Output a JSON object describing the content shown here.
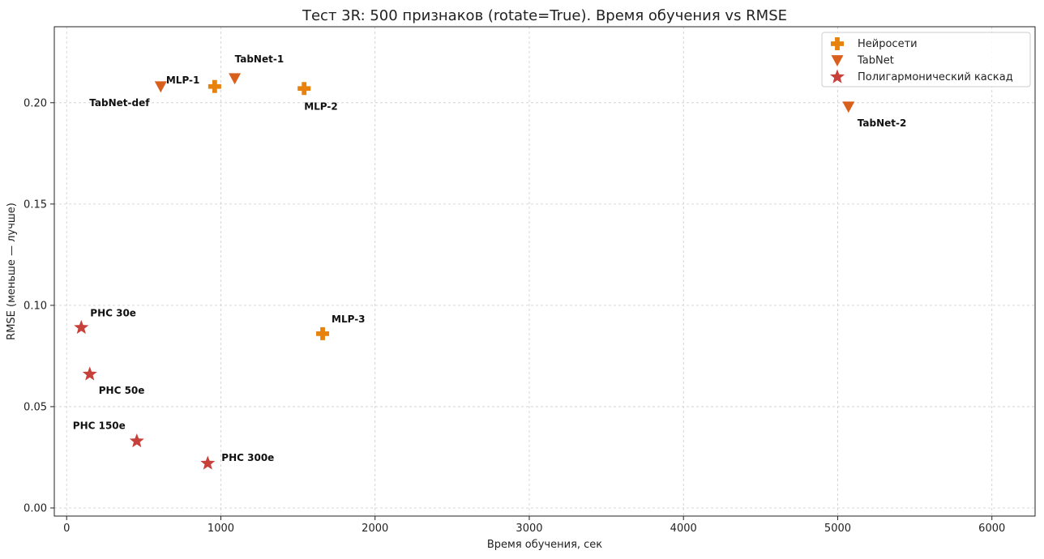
{
  "chart_data": {
    "type": "scatter",
    "title": "Тест 3R: 500 признаков (rotate=True). Время обучения vs RMSE",
    "xlabel": "Время обучения, сек",
    "ylabel": "RMSE (меньше — лучше)",
    "xlim": [
      -80,
      6280
    ],
    "ylim": [
      -0.004,
      0.2375
    ],
    "xticks": [
      0,
      1000,
      2000,
      3000,
      4000,
      5000,
      6000
    ],
    "xtick_labels": [
      "0",
      "1000",
      "2000",
      "3000",
      "4000",
      "5000",
      "6000"
    ],
    "yticks": [
      0.0,
      0.05,
      0.1,
      0.15,
      0.2
    ],
    "ytick_labels": [
      "0.00",
      "0.05",
      "0.10",
      "0.15",
      "0.20"
    ],
    "grid": true,
    "legend_position": "top-right",
    "series": [
      {
        "name": "Нейросети",
        "marker": "plus",
        "color": "#e8820e",
        "points": [
          {
            "label": "MLP-1",
            "x": 960,
            "y": 0.208,
            "label_pos": "upper-left"
          },
          {
            "label": "MLP-2",
            "x": 1540,
            "y": 0.207,
            "label_pos": "below-right"
          },
          {
            "label": "MLP-3",
            "x": 1660,
            "y": 0.086,
            "label_pos": "upper-right"
          }
        ]
      },
      {
        "name": "TabNet",
        "marker": "triangle-down",
        "color": "#d95f1c",
        "points": [
          {
            "label": "TabNet-def",
            "x": 610,
            "y": 0.208,
            "label_pos": "below-left"
          },
          {
            "label": "TabNet-1",
            "x": 1090,
            "y": 0.212,
            "label_pos": "above-right"
          },
          {
            "label": "TabNet-2",
            "x": 5070,
            "y": 0.198,
            "label_pos": "below-right"
          }
        ]
      },
      {
        "name": "Полигармонический каскад",
        "marker": "star",
        "color": "#c8403a",
        "points": [
          {
            "label": "PHC 30e",
            "x": 95,
            "y": 0.089,
            "label_pos": "upper-right"
          },
          {
            "label": "PHC 50e",
            "x": 150,
            "y": 0.066,
            "label_pos": "below-right"
          },
          {
            "label": "PHC 150e",
            "x": 455,
            "y": 0.033,
            "label_pos": "upper-left"
          },
          {
            "label": "PHC 300e",
            "x": 915,
            "y": 0.022,
            "label_pos": "right"
          }
        ]
      }
    ]
  }
}
